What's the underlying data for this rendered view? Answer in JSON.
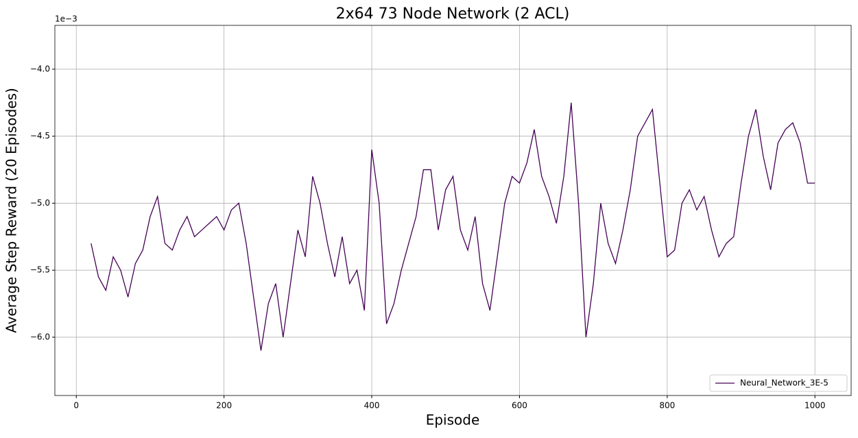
{
  "chart_data": {
    "type": "line",
    "title": "2x64 73 Node Network (2 ACL)",
    "x_label": "Episode",
    "y_label": "Average Step Reward (20 Episodes)",
    "y_offset_label": "1e−3",
    "x": [
      20,
      30,
      40,
      50,
      60,
      70,
      80,
      90,
      100,
      110,
      120,
      130,
      140,
      150,
      160,
      170,
      180,
      190,
      200,
      210,
      220,
      230,
      240,
      250,
      260,
      270,
      280,
      290,
      300,
      310,
      320,
      330,
      340,
      350,
      360,
      370,
      380,
      390,
      400,
      410,
      420,
      430,
      440,
      450,
      460,
      470,
      480,
      490,
      500,
      510,
      520,
      530,
      540,
      550,
      560,
      570,
      580,
      590,
      600,
      610,
      620,
      630,
      640,
      650,
      660,
      670,
      680,
      690,
      700,
      710,
      720,
      730,
      740,
      750,
      760,
      770,
      780,
      790,
      800,
      810,
      820,
      830,
      840,
      850,
      860,
      870,
      880,
      890,
      900,
      910,
      920,
      930,
      940,
      950,
      960,
      970,
      980,
      990,
      1000
    ],
    "series": [
      {
        "name": "Neural_Network_3E-5",
        "color": "#440154",
        "values": [
          -5.3,
          -5.55,
          -5.65,
          -5.4,
          -5.5,
          -5.7,
          -5.45,
          -5.35,
          -5.1,
          -4.95,
          -5.3,
          -5.35,
          -5.2,
          -5.1,
          -5.25,
          -5.2,
          -5.15,
          -5.1,
          -5.2,
          -5.05,
          -5.0,
          -5.3,
          -5.7,
          -6.1,
          -5.75,
          -5.6,
          -6.0,
          -5.6,
          -5.2,
          -5.4,
          -4.8,
          -5.0,
          -5.3,
          -5.55,
          -5.25,
          -5.6,
          -5.5,
          -5.8,
          -4.6,
          -5.0,
          -5.9,
          -5.75,
          -5.5,
          -5.3,
          -5.1,
          -4.75,
          -4.75,
          -5.2,
          -4.9,
          -4.8,
          -5.2,
          -5.35,
          -5.1,
          -5.6,
          -5.8,
          -5.4,
          -5.0,
          -4.8,
          -4.85,
          -4.7,
          -4.45,
          -4.8,
          -4.95,
          -5.15,
          -4.8,
          -4.25,
          -5.0,
          -6.0,
          -5.6,
          -5.0,
          -5.3,
          -5.45,
          -5.2,
          -4.9,
          -4.5,
          -4.4,
          -4.3,
          -4.85,
          -5.4,
          -5.35,
          -5.0,
          -4.9,
          -5.05,
          -4.95,
          -5.2,
          -5.4,
          -5.3,
          -5.25,
          -4.85,
          -4.5,
          -4.3,
          -4.65,
          -4.9,
          -4.55,
          -4.45,
          -4.4,
          -4.55,
          -4.85,
          -4.85
        ]
      }
    ],
    "xlim": [
      -29,
      1049
    ],
    "ylim": [
      -6.435,
      -3.673
    ],
    "xticks": [
      0,
      200,
      400,
      600,
      800,
      1000
    ],
    "yticks": [
      {
        "value": -6.0,
        "label": "−6.0"
      },
      {
        "value": -5.5,
        "label": "−5.5"
      },
      {
        "value": -5.0,
        "label": "−5.0"
      },
      {
        "value": -4.5,
        "label": "−4.5"
      },
      {
        "value": -4.0,
        "label": "−4.0"
      }
    ],
    "grid": true,
    "legend": "lower right"
  }
}
